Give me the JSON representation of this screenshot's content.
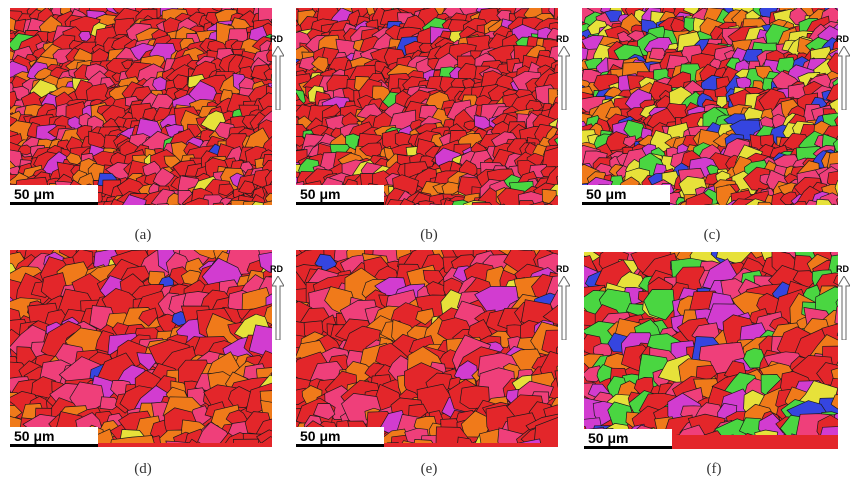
{
  "figure": {
    "panels": [
      {
        "caption": "(a)",
        "scale_text": "50 μm",
        "direction_label": "RD"
      },
      {
        "caption": "(b)",
        "scale_text": "50 μm",
        "direction_label": "RD"
      },
      {
        "caption": "(c)",
        "scale_text": "50 μm",
        "direction_label": "RD"
      },
      {
        "caption": "(d)",
        "scale_text": "50 μm",
        "direction_label": "RD"
      },
      {
        "caption": "(e)",
        "scale_text": "50 μm",
        "direction_label": "RD"
      },
      {
        "caption": "(f)",
        "scale_text": "50 μm",
        "direction_label": "RD"
      }
    ],
    "colors": {
      "red_dominant": "#e3262a",
      "orange": "#f07a1a",
      "pink": "#ef3f7a",
      "magenta": "#d23cd0",
      "green": "#4ad641",
      "blue": "#3545e0",
      "yellow": "#e7e13a",
      "grain_boundary": "#1a1a1a"
    }
  }
}
